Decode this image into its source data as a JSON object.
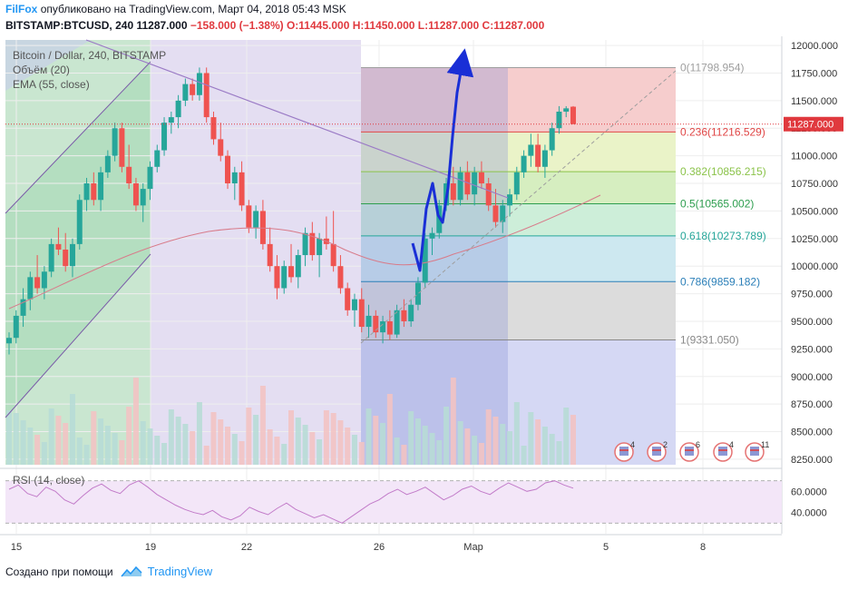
{
  "header": {
    "brand": "FilFox",
    "published": "опубликовано на TradingView.com, Март 04, 2018 05:43 MSK",
    "symbol": "BITSTAMP:BTCUSD, 240",
    "last": "11287.000",
    "change": "−158.000 (−1.38%)",
    "open": "O:11445.000",
    "high": "H:11450.000",
    "low": "L:11287.000",
    "close": "C:11287.000"
  },
  "legend": {
    "title": "Bitcoin / Dollar, 240, BITSTAMP",
    "volume": "Объём (20)",
    "ema": "EMA (55, close)",
    "rsi": "RSI (14, close)"
  },
  "footer": {
    "created": "Создано при помощи",
    "tradingview": "TradingView"
  },
  "colors": {
    "up": "#26a69a",
    "down": "#ef5350",
    "fib_top": "#f4c7c7",
    "price_badge": "#e0393e",
    "arrow": "#1a2fd6"
  },
  "chart_data": {
    "type": "candlestick",
    "price_axis_ticks": [
      12000,
      11750,
      11500,
      11250,
      11000,
      10750,
      10500,
      10250,
      10000,
      9750,
      9500,
      9250,
      9000,
      8750,
      8500,
      8250
    ],
    "price_axis_labels": [
      "12000.000",
      "11750.000",
      "11500.000",
      "11250.000",
      "11000.000",
      "10750.000",
      "10500.000",
      "10250.000",
      "10000.000",
      "9750.000",
      "9500.000",
      "9250.000",
      "9000.000",
      "8750.000",
      "8500.000",
      "8250.000"
    ],
    "current_price": "11287.000",
    "rsi_ticks": [
      "60.0000",
      "40.0000"
    ],
    "x_ticks": [
      "15",
      "19",
      "22",
      "26",
      "Мар",
      "5",
      "8"
    ],
    "fibonacci": [
      {
        "label": "0(11798.954)",
        "value": 11798.954,
        "color": "#9e9e9e"
      },
      {
        "label": "0.236(11216.529)",
        "value": 11216.529,
        "color": "#e04646"
      },
      {
        "label": "0.382(10856.215)",
        "value": 10856.215,
        "color": "#8bc34a"
      },
      {
        "label": "0.5(10565.002)",
        "value": 10565.002,
        "color": "#2e9e4f"
      },
      {
        "label": "0.618(10273.789)",
        "value": 10273.789,
        "color": "#26a69a"
      },
      {
        "label": "0.786(9859.182)",
        "value": 9859.182,
        "color": "#2b7fb8"
      },
      {
        "label": "1(9331.050)",
        "value": 9331.05,
        "color": "#888888"
      }
    ],
    "event_badges": [
      "4",
      "2",
      "6",
      "4",
      "11"
    ],
    "price_range": [
      8200,
      12050
    ],
    "candles_ohlc": [
      [
        9300,
        9400,
        9200,
        9350
      ],
      [
        9350,
        9600,
        9300,
        9550
      ],
      [
        9550,
        9800,
        9450,
        9700
      ],
      [
        9700,
        9950,
        9600,
        9900
      ],
      [
        9900,
        10100,
        9750,
        9800
      ],
      [
        9800,
        10000,
        9700,
        9950
      ],
      [
        9950,
        10250,
        9900,
        10200
      ],
      [
        10200,
        10350,
        10100,
        10150
      ],
      [
        10150,
        10300,
        9950,
        10000
      ],
      [
        10000,
        10250,
        9900,
        10200
      ],
      [
        10200,
        10650,
        10150,
        10600
      ],
      [
        10600,
        10800,
        10500,
        10750
      ],
      [
        10750,
        10850,
        10550,
        10600
      ],
      [
        10600,
        10900,
        10500,
        10850
      ],
      [
        10850,
        11050,
        10800,
        11000
      ],
      [
        11000,
        11300,
        10950,
        11250
      ],
      [
        11250,
        11300,
        10850,
        10900
      ],
      [
        10900,
        11100,
        10700,
        10750
      ],
      [
        10750,
        10800,
        10500,
        10550
      ],
      [
        10550,
        10750,
        10400,
        10700
      ],
      [
        10700,
        10950,
        10600,
        10900
      ],
      [
        10900,
        11100,
        10850,
        11050
      ],
      [
        11050,
        11350,
        11000,
        11300
      ],
      [
        11300,
        11400,
        11200,
        11350
      ],
      [
        11350,
        11550,
        11250,
        11500
      ],
      [
        11500,
        11700,
        11450,
        11650
      ],
      [
        11650,
        11700,
        11500,
        11550
      ],
      [
        11550,
        11800,
        11500,
        11750
      ],
      [
        11750,
        11800,
        11300,
        11350
      ],
      [
        11350,
        11400,
        11100,
        11150
      ],
      [
        11150,
        11300,
        10950,
        11000
      ],
      [
        11000,
        11050,
        10700,
        10750
      ],
      [
        10750,
        10900,
        10600,
        10850
      ],
      [
        10850,
        10950,
        10500,
        10550
      ],
      [
        10550,
        10600,
        10300,
        10350
      ],
      [
        10350,
        10550,
        10250,
        10500
      ],
      [
        10500,
        10600,
        10150,
        10200
      ],
      [
        10200,
        10350,
        9950,
        10000
      ],
      [
        10000,
        10100,
        9700,
        9800
      ],
      [
        9800,
        10050,
        9750,
        10000
      ],
      [
        10000,
        10200,
        9850,
        9900
      ],
      [
        9900,
        10150,
        9800,
        10100
      ],
      [
        10100,
        10350,
        10000,
        10300
      ],
      [
        10300,
        10400,
        10050,
        10100
      ],
      [
        10100,
        10300,
        9900,
        10250
      ],
      [
        10250,
        10450,
        10150,
        10200
      ],
      [
        10200,
        10500,
        9950,
        10000
      ],
      [
        10000,
        10100,
        9750,
        9800
      ],
      [
        9800,
        9850,
        9550,
        9600
      ],
      [
        9600,
        9750,
        9450,
        9700
      ],
      [
        9700,
        9800,
        9400,
        9450
      ],
      [
        9450,
        9650,
        9350,
        9550
      ],
      [
        9550,
        9600,
        9350,
        9400
      ],
      [
        9400,
        9550,
        9300,
        9500
      ],
      [
        9500,
        9600,
        9331,
        9380
      ],
      [
        9380,
        9650,
        9350,
        9600
      ],
      [
        9600,
        9700,
        9450,
        9500
      ],
      [
        9500,
        9700,
        9450,
        9650
      ],
      [
        9650,
        9900,
        9600,
        9850
      ],
      [
        9850,
        10300,
        9800,
        10250
      ],
      [
        10250,
        10350,
        10100,
        10300
      ],
      [
        10300,
        10600,
        10250,
        10550
      ],
      [
        10550,
        10800,
        10500,
        10750
      ],
      [
        10750,
        10900,
        10550,
        10600
      ],
      [
        10600,
        10900,
        10550,
        10850
      ],
      [
        10850,
        10950,
        10600,
        10650
      ],
      [
        10650,
        10900,
        10550,
        10850
      ],
      [
        10850,
        10950,
        10700,
        10750
      ],
      [
        10750,
        10800,
        10500,
        10550
      ],
      [
        10550,
        10700,
        10350,
        10400
      ],
      [
        10400,
        10600,
        10300,
        10550
      ],
      [
        10550,
        10700,
        10450,
        10650
      ],
      [
        10650,
        10900,
        10600,
        10850
      ],
      [
        10850,
        11050,
        10800,
        11000
      ],
      [
        11000,
        11200,
        10900,
        11100
      ],
      [
        11100,
        11200,
        10850,
        10900
      ],
      [
        10900,
        11100,
        10800,
        11050
      ],
      [
        11050,
        11300,
        11000,
        11250
      ],
      [
        11250,
        11450,
        11200,
        11400
      ],
      [
        11400,
        11450,
        11350,
        11430
      ],
      [
        11445,
        11450,
        11287,
        11287
      ]
    ],
    "rsi_values": [
      62,
      66,
      58,
      55,
      64,
      60,
      52,
      48,
      56,
      63,
      67,
      61,
      58,
      66,
      70,
      64,
      57,
      52,
      47,
      43,
      40,
      38,
      42,
      36,
      33,
      37,
      45,
      41,
      38,
      44,
      49,
      43,
      39,
      35,
      38,
      34,
      30,
      36,
      42,
      48,
      52,
      58,
      62,
      57,
      60,
      64,
      58,
      52,
      56,
      62,
      65,
      60,
      57,
      63,
      68,
      64,
      60,
      62,
      68,
      70,
      66,
      63
    ]
  }
}
